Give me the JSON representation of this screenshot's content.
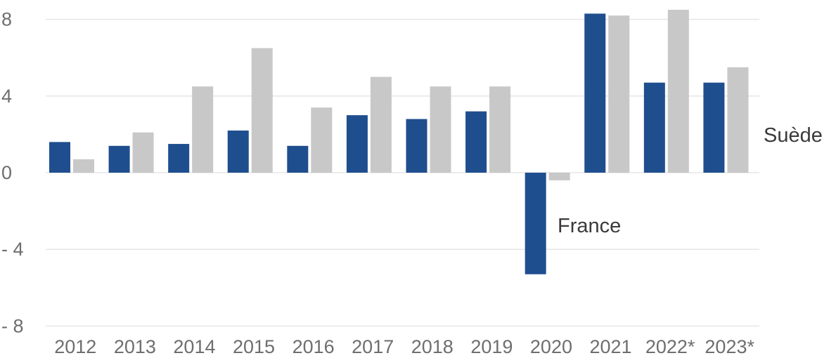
{
  "chart_data": {
    "type": "bar",
    "categories": [
      "2012",
      "2013",
      "2014",
      "2015",
      "2016",
      "2017",
      "2018",
      "2019",
      "2020",
      "2021",
      "2022*",
      "2023*"
    ],
    "series": [
      {
        "name": "France",
        "color": "#1f4e8f",
        "values": [
          1.6,
          1.4,
          1.5,
          2.2,
          1.4,
          3.0,
          2.8,
          3.2,
          -5.3,
          8.3,
          4.7,
          4.7
        ]
      },
      {
        "name": "Suède",
        "color": "#c8c8c8",
        "values": [
          0.7,
          2.1,
          4.5,
          6.5,
          3.4,
          5.0,
          4.5,
          4.5,
          -0.4,
          8.2,
          8.5,
          5.5
        ]
      }
    ],
    "y_ticks": [
      8,
      4,
      0,
      -4,
      -8
    ],
    "y_tick_labels": [
      "8",
      "4",
      "0",
      "- 4",
      "- 8"
    ],
    "ylim": [
      -8,
      8.5
    ],
    "grid": true,
    "title": "",
    "xlabel": "",
    "ylabel": ""
  }
}
